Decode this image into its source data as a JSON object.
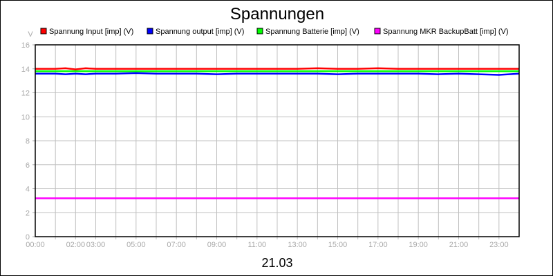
{
  "chart_data": {
    "type": "line",
    "title": "Spannungen",
    "subtitle": "21.03",
    "ylabel": "V",
    "xlabel": "",
    "ylim": [
      0,
      16
    ],
    "xlim": [
      0,
      24
    ],
    "grid": true,
    "legend_position": "top",
    "yticks": [
      "0",
      "2",
      "4",
      "6",
      "8",
      "10",
      "12",
      "14",
      "16"
    ],
    "xticks": [
      {
        "hour": 0,
        "label": "00:00"
      },
      {
        "hour": 2,
        "label": "02:00"
      },
      {
        "hour": 3,
        "label": "03:00"
      },
      {
        "hour": 5,
        "label": "05:00"
      },
      {
        "hour": 7,
        "label": "07:00"
      },
      {
        "hour": 9,
        "label": "09:00"
      },
      {
        "hour": 11,
        "label": "11:00"
      },
      {
        "hour": 13,
        "label": "13:00"
      },
      {
        "hour": 15,
        "label": "15:00"
      },
      {
        "hour": 17,
        "label": "17:00"
      },
      {
        "hour": 19,
        "label": "19:00"
      },
      {
        "hour": 21,
        "label": "21:00"
      },
      {
        "hour": 23,
        "label": "23:00"
      }
    ],
    "x_hours": [
      0,
      1,
      1.5,
      2,
      2.5,
      3,
      4,
      5,
      6,
      7,
      8,
      9,
      10,
      11,
      12,
      13,
      14,
      15,
      16,
      17,
      18,
      19,
      20,
      21,
      22,
      23,
      24
    ],
    "series": [
      {
        "name": "Spannung Input [imp] (V)",
        "color": "#ff0000",
        "values": [
          14.0,
          14.0,
          14.05,
          13.95,
          14.05,
          14.0,
          14.0,
          14.0,
          14.0,
          14.0,
          14.0,
          14.0,
          14.0,
          14.0,
          14.0,
          14.0,
          14.05,
          14.0,
          14.0,
          14.05,
          14.0,
          14.0,
          14.0,
          14.0,
          14.0,
          14.0,
          14.0
        ]
      },
      {
        "name": "Spannung output [imp] (V)",
        "color": "#0000ff",
        "values": [
          13.6,
          13.6,
          13.55,
          13.6,
          13.55,
          13.6,
          13.6,
          13.65,
          13.6,
          13.6,
          13.6,
          13.55,
          13.6,
          13.6,
          13.6,
          13.6,
          13.6,
          13.55,
          13.6,
          13.6,
          13.6,
          13.6,
          13.55,
          13.6,
          13.55,
          13.5,
          13.6
        ]
      },
      {
        "name": "Spannung Batterie [imp] (V)",
        "color": "#00ff00",
        "values": [
          13.8,
          13.8,
          13.8,
          13.8,
          13.8,
          13.8,
          13.8,
          13.8,
          13.8,
          13.8,
          13.8,
          13.8,
          13.8,
          13.8,
          13.8,
          13.8,
          13.8,
          13.8,
          13.8,
          13.8,
          13.8,
          13.8,
          13.8,
          13.8,
          13.8,
          13.8,
          13.8
        ]
      },
      {
        "name": "Spannung MKR BackupBatt [imp] (V)",
        "color": "#ff00ff",
        "values": [
          3.2,
          3.2,
          3.2,
          3.2,
          3.2,
          3.2,
          3.2,
          3.2,
          3.2,
          3.2,
          3.2,
          3.2,
          3.2,
          3.2,
          3.2,
          3.2,
          3.2,
          3.2,
          3.2,
          3.2,
          3.2,
          3.2,
          3.2,
          3.2,
          3.2,
          3.2,
          3.2
        ]
      }
    ]
  }
}
